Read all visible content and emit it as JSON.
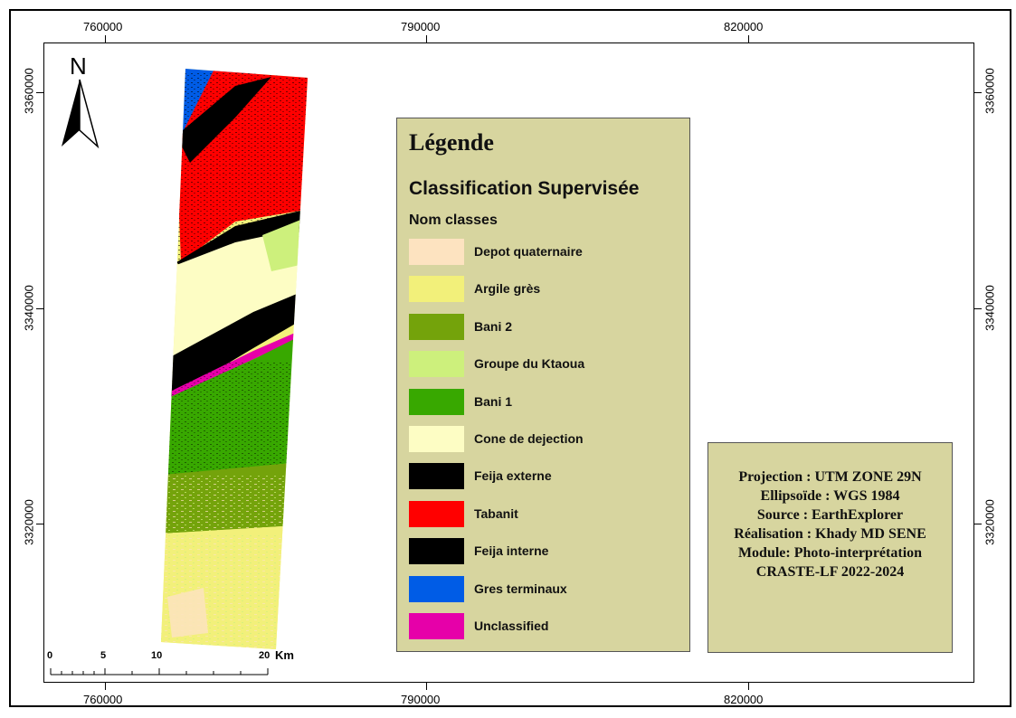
{
  "grid": {
    "x_labels": [
      "760000",
      "790000",
      "820000"
    ],
    "y_labels": [
      "3360000",
      "3340000",
      "3320000"
    ]
  },
  "north_arrow": {
    "label": "N"
  },
  "scale_bar": {
    "ticks": [
      "0",
      "5",
      "10",
      "20"
    ],
    "unit": "Km"
  },
  "legend": {
    "title": "Légende",
    "subtitle": "Classification Supervisée",
    "group_label": "Nom classes",
    "items": [
      {
        "label": "Depot quaternaire",
        "color": "#fde3c0"
      },
      {
        "label": "Argile grès",
        "color": "#f2f07a"
      },
      {
        "label": "Bani 2",
        "color": "#74a30b"
      },
      {
        "label": "Groupe du Ktaoua",
        "color": "#cdf07c"
      },
      {
        "label": "Bani 1",
        "color": "#38a800"
      },
      {
        "label": "Cone de dejection",
        "color": "#fdfdc4"
      },
      {
        "label": "Feija externe",
        "color": "#000000"
      },
      {
        "label": "Tabanit",
        "color": "#ff0000"
      },
      {
        "label": "Feija interne",
        "color": "#000000"
      },
      {
        "label": "Gres terminaux",
        "color": "#005ce6"
      },
      {
        "label": "Unclassified",
        "color": "#e600a9"
      }
    ]
  },
  "credits": {
    "lines": [
      "Projection : UTM ZONE 29N",
      "Ellipsoïde : WGS 1984",
      "Source : EarthExplorer",
      "Réalisation : Khady MD SENE",
      "Module: Photo-interprétation",
      "CRASTE-LF 2022-2024"
    ]
  }
}
